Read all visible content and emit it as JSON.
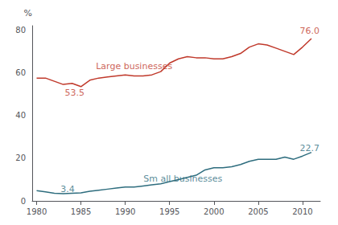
{
  "chart_data": {
    "type": "line",
    "ylabel": "%",
    "x": [
      1980,
      1981,
      1982,
      1983,
      1984,
      1985,
      1986,
      1987,
      1988,
      1989,
      1990,
      1991,
      1992,
      1993,
      1994,
      1995,
      1996,
      1997,
      1998,
      1999,
      2000,
      2001,
      2002,
      2003,
      2004,
      2005,
      2006,
      2007,
      2008,
      2009,
      2010,
      2011
    ],
    "series": [
      {
        "color": "#c0392b",
        "values": [
          57.5,
          57.5,
          56.0,
          54.5,
          55.0,
          53.5,
          56.5,
          57.5,
          58.0,
          58.5,
          59.0,
          58.5,
          58.5,
          59.0,
          60.5,
          64.5,
          66.5,
          67.5,
          67.0,
          67.0,
          66.5,
          66.5,
          67.5,
          69.0,
          72.0,
          73.5,
          73.0,
          71.5,
          70.0,
          68.5,
          72.0,
          76.0
        ]
      },
      {
        "color": "#2e6d7e",
        "values": [
          4.8,
          4.2,
          3.6,
          3.4,
          3.6,
          3.8,
          4.5,
          5.0,
          5.5,
          6.0,
          6.5,
          6.5,
          7.0,
          7.5,
          8.0,
          9.0,
          10.0,
          11.0,
          12.0,
          14.5,
          15.5,
          15.5,
          16.0,
          17.0,
          18.5,
          19.5,
          19.5,
          19.5,
          20.5,
          19.5,
          21.0,
          22.7
        ]
      }
    ],
    "annotations": [
      {
        "text": "Large businesses",
        "x": 1991.0,
        "y": 63.0,
        "color": "#c0392b"
      },
      {
        "text": "Sm all businesses",
        "x": 1996.5,
        "y": 10.5,
        "color": "#2e6d7e"
      },
      {
        "text": "53.5",
        "x": 1984.3,
        "y": 50.5,
        "color": "#c0392b"
      },
      {
        "text": "76.0",
        "x": 2010.8,
        "y": 79.5,
        "color": "#c0392b"
      },
      {
        "text": "3.4",
        "x": 1983.5,
        "y": 5.5,
        "color": "#2e6d7e"
      },
      {
        "text": "22.7",
        "x": 2010.8,
        "y": 24.5,
        "color": "#2e6d7e"
      }
    ],
    "xlim": [
      1979.5,
      2012.0
    ],
    "xticks": [
      1980,
      1985,
      1990,
      1995,
      2000,
      2005,
      2010
    ],
    "ylim": [
      0,
      82
    ],
    "yticks": [
      0,
      20,
      40,
      60,
      80
    ],
    "grid": false
  }
}
